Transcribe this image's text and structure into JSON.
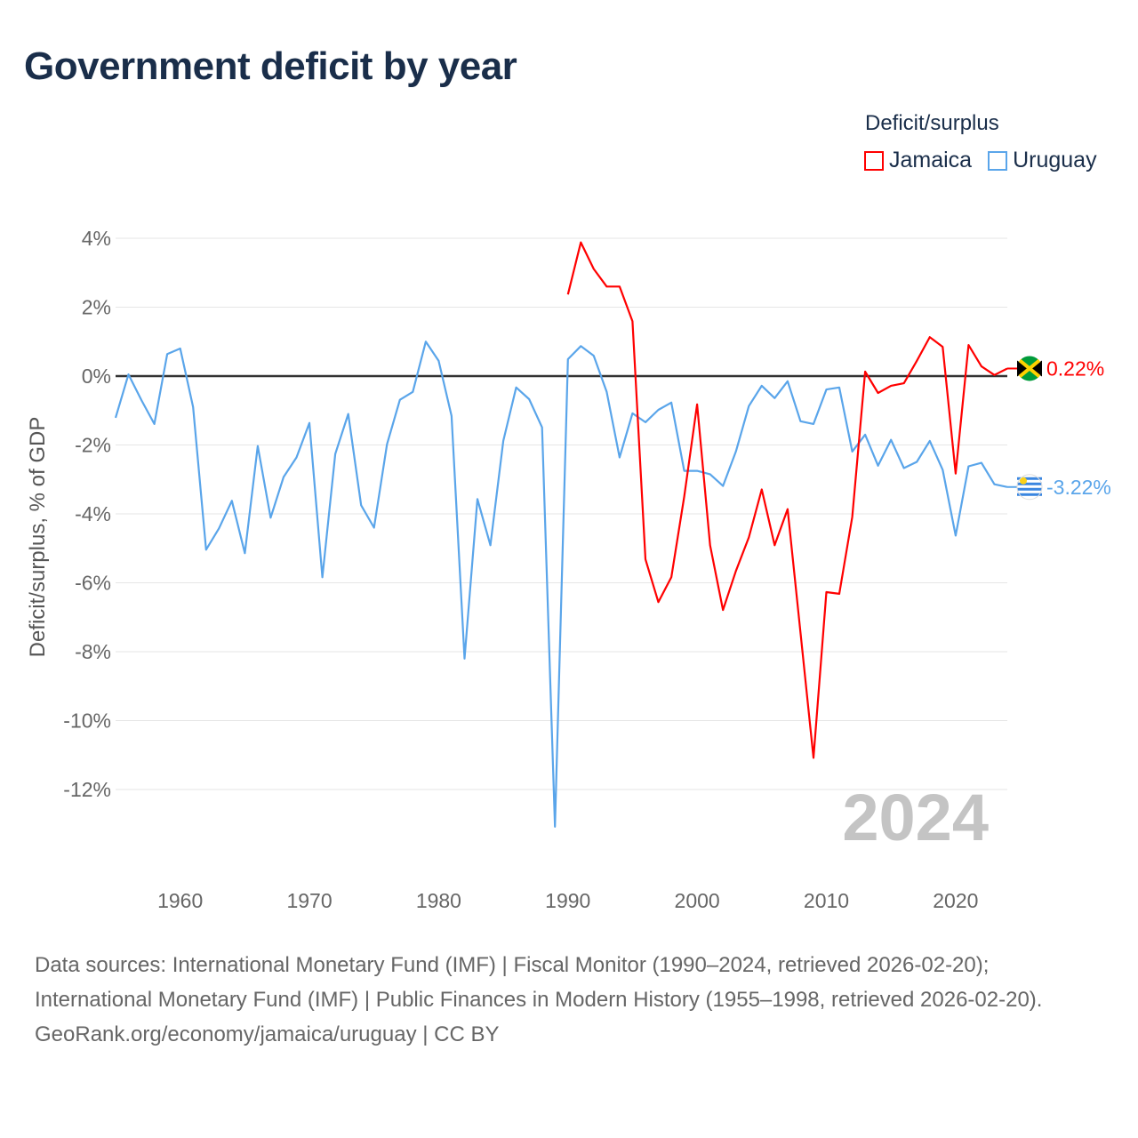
{
  "title": "Government deficit by year",
  "legend": {
    "title": "Deficit/surplus",
    "items": [
      {
        "label": "Jamaica",
        "color": "#ff0000"
      },
      {
        "label": "Uruguay",
        "color": "#5aa5ea"
      }
    ]
  },
  "watermark_year": "2024",
  "footer": {
    "sources": "Data sources: International Monetary Fund (IMF) | Fiscal Monitor (1990–2024, retrieved 2026-02-20); International Monetary Fund (IMF) | Public Finances in Modern History (1955–1998, retrieved 2026-02-20).",
    "credit": "GeoRank.org/economy/jamaica/uruguay | CC BY"
  },
  "chart_data": {
    "type": "line",
    "title": "Government deficit by year",
    "xlabel": "",
    "ylabel": "Deficit/surplus, % of GDP",
    "xlim": [
      1955,
      2024
    ],
    "ylim": [
      -14,
      4
    ],
    "x_ticks": [
      1960,
      1970,
      1980,
      1990,
      2000,
      2010,
      2020
    ],
    "y_ticks": [
      4,
      2,
      0,
      -2,
      -4,
      -6,
      -8,
      -10,
      -12
    ],
    "y_tick_labels": [
      "4%",
      "2%",
      "0%",
      "-2%",
      "-4%",
      "-6%",
      "-8%",
      "-10%",
      "-12%"
    ],
    "grid": true,
    "legend_position": "top-right",
    "series": [
      {
        "name": "Jamaica",
        "color": "#ff0000",
        "end_label": "0.22%",
        "x": [
          1990,
          1991,
          1992,
          1993,
          1994,
          1995,
          1996,
          1997,
          1998,
          1999,
          2000,
          2001,
          2002,
          2003,
          2004,
          2005,
          2006,
          2007,
          2008,
          2009,
          2010,
          2011,
          2012,
          2013,
          2014,
          2015,
          2016,
          2017,
          2018,
          2019,
          2020,
          2021,
          2022,
          2023,
          2024
        ],
        "values": [
          2.37,
          3.88,
          3.11,
          2.6,
          2.6,
          1.59,
          -5.32,
          -6.56,
          -5.84,
          -3.5,
          -0.82,
          -4.91,
          -6.79,
          -5.66,
          -4.68,
          -3.29,
          -4.91,
          -3.86,
          -7.45,
          -11.08,
          -6.27,
          -6.32,
          -4.09,
          0.13,
          -0.49,
          -0.28,
          -0.21,
          0.44,
          1.13,
          0.85,
          -2.83,
          0.9,
          0.28,
          0.03,
          0.22
        ]
      },
      {
        "name": "Uruguay",
        "color": "#5aa5ea",
        "end_label": "-3.22%",
        "x": [
          1955,
          1956,
          1957,
          1958,
          1959,
          1960,
          1961,
          1962,
          1963,
          1964,
          1965,
          1966,
          1967,
          1968,
          1969,
          1970,
          1971,
          1972,
          1973,
          1974,
          1975,
          1976,
          1977,
          1978,
          1979,
          1980,
          1981,
          1982,
          1983,
          1984,
          1985,
          1986,
          1987,
          1988,
          1989,
          1990,
          1991,
          1992,
          1993,
          1994,
          1995,
          1996,
          1997,
          1998,
          1999,
          2000,
          2001,
          2002,
          2003,
          2004,
          2005,
          2006,
          2007,
          2008,
          2009,
          2010,
          2011,
          2012,
          2013,
          2014,
          2015,
          2016,
          2017,
          2018,
          2019,
          2020,
          2021,
          2022,
          2023,
          2024
        ],
        "values": [
          -1.21,
          0.05,
          -0.7,
          -1.39,
          0.64,
          0.8,
          -0.9,
          -5.04,
          -4.42,
          -3.62,
          -5.14,
          -2.03,
          -4.11,
          -2.93,
          -2.36,
          -1.36,
          -5.84,
          -2.26,
          -1.1,
          -3.75,
          -4.4,
          -1.98,
          -0.69,
          -0.46,
          1.0,
          0.44,
          -1.16,
          -8.2,
          -3.57,
          -4.91,
          -1.88,
          -0.33,
          -0.67,
          -1.49,
          -13.08,
          0.49,
          0.87,
          0.59,
          -0.46,
          -2.36,
          -1.08,
          -1.34,
          -0.98,
          -0.77,
          -2.75,
          -2.75,
          -2.85,
          -3.19,
          -2.19,
          -0.87,
          -0.28,
          -0.64,
          -0.15,
          -1.31,
          -1.39,
          -0.39,
          -0.33,
          -2.19,
          -1.7,
          -2.6,
          -1.85,
          -2.67,
          -2.49,
          -1.88,
          -2.72,
          -4.63,
          -2.62,
          -2.52,
          -3.14,
          -3.22
        ]
      }
    ]
  }
}
